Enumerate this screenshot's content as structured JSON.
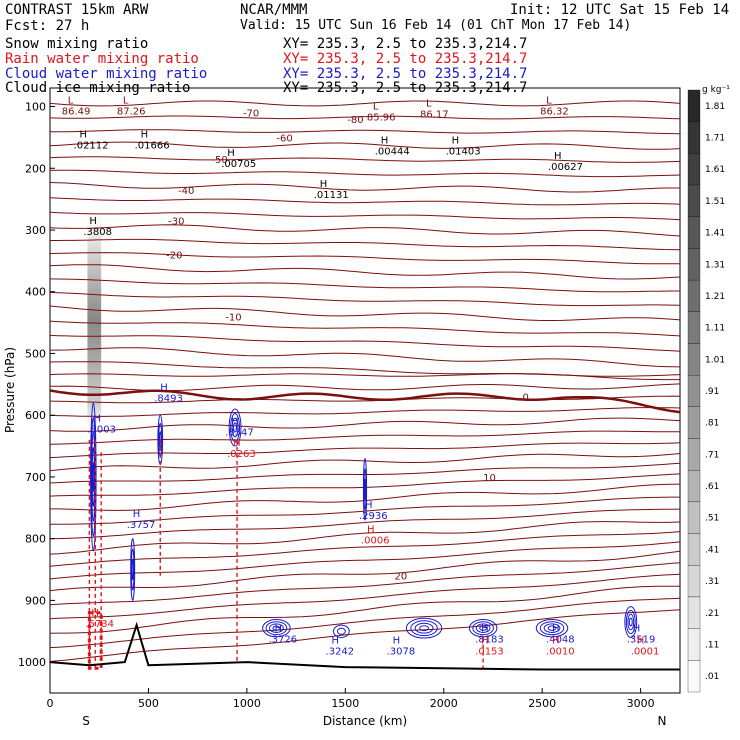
{
  "header": {
    "model": "CONTRAST 15km ARW",
    "org": "NCAR/MMM",
    "init": "Init: 12 UTC Sat 15 Feb 14",
    "fcst": "Fcst:    27 h",
    "valid": "Valid: 15 UTC Sun 16 Feb 14 (01 ChT Mon 17 Feb 14)",
    "fields": [
      {
        "name": "Snow mixing ratio",
        "xy": "XY= 235.3,  2.5 to 235.3,214.7",
        "color": "#000000"
      },
      {
        "name": "Rain water mixing ratio",
        "xy": "XY= 235.3,  2.5 to 235.3,214.7",
        "color": "#e0161b"
      },
      {
        "name": "Cloud water mixing ratio",
        "xy": "XY= 235.3,  2.5 to 235.3,214.7",
        "color": "#1a1ad0"
      },
      {
        "name": "Cloud ice mixing ratio",
        "xy": "XY= 235.3,  2.5 to 235.3,214.7",
        "color": "#000000"
      }
    ]
  },
  "chart_data": {
    "type": "cross-section",
    "xlabel": "Distance (km)",
    "ylabel": "Pressure (hPa)",
    "xlim": [
      0,
      3200
    ],
    "ylim": [
      1050,
      70
    ],
    "x_ticks": [
      0,
      500,
      1000,
      1500,
      2000,
      2500,
      3000
    ],
    "y_ticks": [
      100,
      200,
      300,
      400,
      500,
      600,
      700,
      800,
      900,
      1000
    ],
    "endpoints": {
      "left": "S",
      "right": "N"
    },
    "colorbar": {
      "unit": "g kg⁻¹",
      "levels": [
        "1.81",
        "1.71",
        "1.61",
        "1.51",
        "1.41",
        "1.31",
        "1.21",
        "1.11",
        "1.01",
        ".91",
        ".81",
        ".71",
        ".61",
        ".51",
        ".41",
        ".31",
        ".21",
        ".11",
        ".01"
      ]
    },
    "temperature_contours": [
      {
        "level": -80,
        "p": [
          95,
          120,
          125
        ],
        "label_x": 1510
      },
      {
        "level": -70,
        "p": [
          100,
          110,
          112
        ],
        "label_x": 980
      },
      {
        "level": -60,
        "p": [
          140,
          150,
          155
        ],
        "label_x": 1150
      },
      {
        "level": -50,
        "p": [
          180,
          185,
          190
        ],
        "label_x": 820
      },
      {
        "level": -40,
        "p": [
          230,
          235,
          240
        ],
        "label_x": 650
      },
      {
        "level": -30,
        "p": [
          280,
          285,
          290
        ],
        "label_x": 600
      },
      {
        "level": -20,
        "p": [
          330,
          340,
          345
        ],
        "label_x": 590
      },
      {
        "level": -10,
        "p": [
          450,
          440,
          420
        ],
        "label_x": 890
      },
      {
        "level": 0,
        "p": [
          560,
          570,
          590
        ],
        "label_x": 2400
      },
      {
        "level": 10,
        "p": [
          720,
          700,
          670
        ],
        "label_x": 2200
      },
      {
        "level": 20,
        "p": [
          880,
          860,
          820
        ],
        "label_x": 1750
      }
    ],
    "freezing_level_hpa": 570,
    "surface_pressure_hpa": [
      1000,
      1005,
      1000,
      940,
      1005,
      1000,
      1008,
      1010,
      1012,
      1012
    ],
    "surface_x_km": [
      0,
      200,
      380,
      440,
      500,
      1000,
      1500,
      2000,
      2500,
      3200
    ],
    "maxima_labels": [
      {
        "type": "L",
        "value": "86.49",
        "x_km": 90,
        "p_hpa": 95,
        "color": "#7a1010"
      },
      {
        "type": "L",
        "value": "87.26",
        "x_km": 370,
        "p_hpa": 95,
        "color": "#7a1010"
      },
      {
        "type": "L",
        "value": "85.96",
        "x_km": 1640,
        "p_hpa": 105,
        "color": "#7a1010"
      },
      {
        "type": "L",
        "value": "86.17",
        "x_km": 1910,
        "p_hpa": 100,
        "color": "#7a1010"
      },
      {
        "type": "L",
        "value": "86.32",
        "x_km": 2520,
        "p_hpa": 95,
        "color": "#7a1010"
      },
      {
        "type": "H",
        "value": ".02112",
        "x_km": 150,
        "p_hpa": 150,
        "color": "#000000"
      },
      {
        "type": "H",
        "value": ".01666",
        "x_km": 460,
        "p_hpa": 150,
        "color": "#000000"
      },
      {
        "type": "H",
        "value": ".00705",
        "x_km": 900,
        "p_hpa": 180,
        "color": "#000000"
      },
      {
        "type": "H",
        "value": ".01131",
        "x_km": 1370,
        "p_hpa": 230,
        "color": "#000000"
      },
      {
        "type": "H",
        "value": ".00444",
        "x_km": 1680,
        "p_hpa": 160,
        "color": "#000000"
      },
      {
        "type": "H",
        "value": ".01403",
        "x_km": 2040,
        "p_hpa": 160,
        "color": "#000000"
      },
      {
        "type": "H",
        "value": ".00627",
        "x_km": 2560,
        "p_hpa": 185,
        "color": "#000000"
      },
      {
        "type": "H",
        "value": ".3808",
        "x_km": 200,
        "p_hpa": 290,
        "color": "#000000"
      },
      {
        "type": "H",
        "value": ".8003",
        "x_km": 220,
        "p_hpa": 610,
        "color": "#1a1ad0"
      },
      {
        "type": "H",
        "value": ".8493",
        "x_km": 560,
        "p_hpa": 560,
        "color": "#1a1ad0"
      },
      {
        "type": "H",
        "value": ".8347",
        "x_km": 920,
        "p_hpa": 615,
        "color": "#1a1ad0"
      },
      {
        "type": "H",
        "value": ".0263",
        "x_km": 930,
        "p_hpa": 650,
        "color": "#e0161b"
      },
      {
        "type": "H",
        "value": ".3757",
        "x_km": 420,
        "p_hpa": 765,
        "color": "#1a1ad0"
      },
      {
        "type": "H",
        "value": ".2936",
        "x_km": 1600,
        "p_hpa": 750,
        "color": "#1a1ad0"
      },
      {
        "type": "H",
        "value": ".0006",
        "x_km": 1610,
        "p_hpa": 790,
        "color": "#e0161b"
      },
      {
        "type": "H",
        "value": ".5734",
        "x_km": 210,
        "p_hpa": 925,
        "color": "#e0161b"
      },
      {
        "type": "H",
        "value": ".3726",
        "x_km": 1140,
        "p_hpa": 950,
        "color": "#1a1ad0"
      },
      {
        "type": "H",
        "value": ".3242",
        "x_km": 1430,
        "p_hpa": 970,
        "color": "#1a1ad0"
      },
      {
        "type": "H",
        "value": ".3078",
        "x_km": 1740,
        "p_hpa": 970,
        "color": "#1a1ad0"
      },
      {
        "type": "H",
        "value": ".8183",
        "x_km": 2190,
        "p_hpa": 950,
        "color": "#1a1ad0"
      },
      {
        "type": "H",
        "value": ".0153",
        "x_km": 2190,
        "p_hpa": 970,
        "color": "#e0161b"
      },
      {
        "type": "H",
        "value": ".4048",
        "x_km": 2550,
        "p_hpa": 950,
        "color": "#1a1ad0"
      },
      {
        "type": "H",
        "value": ".0010",
        "x_km": 2550,
        "p_hpa": 970,
        "color": "#e0161b"
      },
      {
        "type": "H",
        "value": ".3519",
        "x_km": 2960,
        "p_hpa": 950,
        "color": "#1a1ad0"
      },
      {
        "type": "H",
        "value": ".0001",
        "x_km": 2980,
        "p_hpa": 970,
        "color": "#e0161b"
      }
    ]
  }
}
